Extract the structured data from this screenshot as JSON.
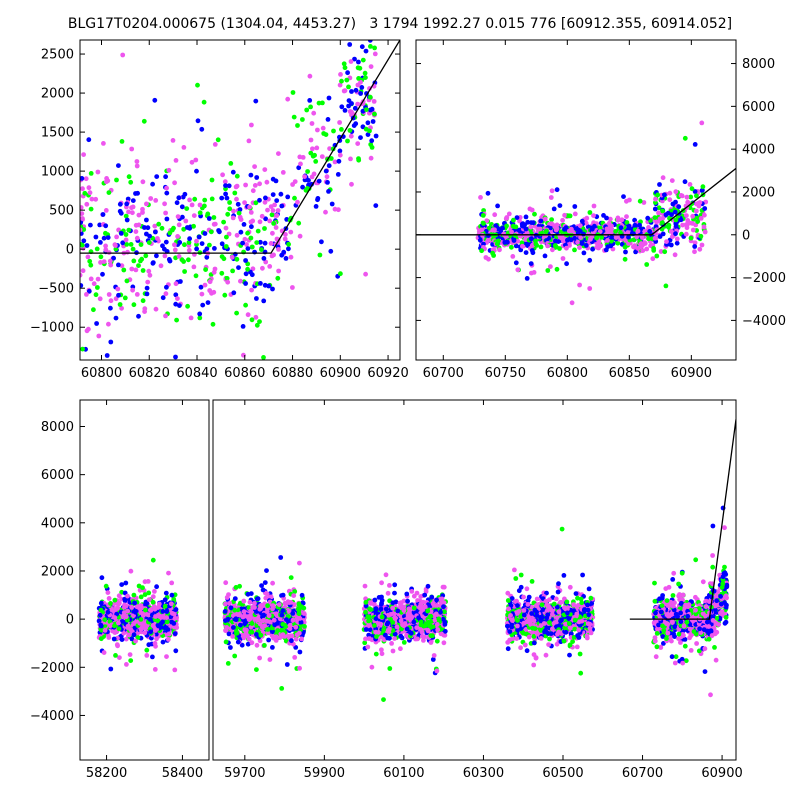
{
  "title": "BLG17T0204.000675 (1304.04, 4453.27)   3 1794 1992.27 0.015 776 [60912.355, 60914.052]",
  "colors": {
    "series_a": "#0000ff",
    "series_b": "#00ff00",
    "series_c": "#ee55ee",
    "model": "#000000"
  },
  "chart_data": [
    {
      "type": "scatter",
      "panel": "top-left",
      "xlim": [
        60791,
        60925
      ],
      "ylim": [
        -1420,
        2680
      ],
      "x_ticks": [
        60800,
        60820,
        60840,
        60860,
        60880,
        60900,
        60920
      ],
      "y_ticks": [
        -1000,
        -500,
        0,
        500,
        1000,
        1500,
        2000,
        2500
      ],
      "y_axis_side": "left",
      "grid": false,
      "model": {
        "x": [
          60791,
          60871,
          60925
        ],
        "y": [
          -50,
          -50,
          2680
        ]
      },
      "clusters": [
        {
          "x_range": [
            60791,
            60870
          ],
          "center": 100,
          "spread": 550,
          "n": 520
        },
        {
          "x_range": [
            60870,
            60880
          ],
          "center": 250,
          "spread": 350,
          "n": 60
        },
        {
          "x_range": [
            60880,
            60900
          ],
          "center": 1100,
          "spread": 450,
          "n": 90
        },
        {
          "x_range": [
            60900,
            60915
          ],
          "center": 1900,
          "spread": 350,
          "n": 110
        }
      ]
    },
    {
      "type": "scatter",
      "panel": "top-right",
      "xlim": [
        60678,
        60936
      ],
      "ylim": [
        -5850,
        9100
      ],
      "x_ticks": [
        60700,
        60750,
        60800,
        60850,
        60900
      ],
      "y_ticks": [
        -4000,
        -2000,
        0,
        2000,
        4000,
        6000,
        8000
      ],
      "y_axis_side": "right",
      "grid": false,
      "model": {
        "x": [
          60678,
          60868,
          60936
        ],
        "y": [
          0,
          0,
          3100
        ]
      },
      "clusters": [
        {
          "x_range": [
            60728,
            60870
          ],
          "center": 0,
          "spread": 350,
          "n": 900
        },
        {
          "x_range": [
            60870,
            60912
          ],
          "center": 800,
          "spread": 700,
          "n": 200
        }
      ]
    },
    {
      "type": "scatter",
      "panel": "bottom",
      "ylim": [
        -5850,
        9100
      ],
      "y_ticks": [
        -4000,
        -2000,
        0,
        2000,
        4000,
        6000,
        8000
      ],
      "y_axis_side": "left",
      "grid": false,
      "broken_x_axis": true,
      "segments": [
        {
          "xlim": [
            58130,
            58470
          ],
          "x_ticks": [
            58200,
            58400
          ],
          "seasons": [
            [
              58180,
              58385
            ]
          ]
        },
        {
          "xlim": [
            59620,
            60935
          ],
          "x_ticks": [
            59700,
            59900,
            60100,
            60300,
            60500,
            60700,
            60900
          ],
          "seasons": [
            [
              59650,
              59850
            ],
            [
              60000,
              60205
            ],
            [
              60360,
              60575
            ],
            [
              60728,
              60912
            ]
          ]
        }
      ],
      "model": {
        "x": [
          60668,
          60868,
          60935
        ],
        "y": [
          0,
          0,
          8300
        ]
      }
    }
  ]
}
